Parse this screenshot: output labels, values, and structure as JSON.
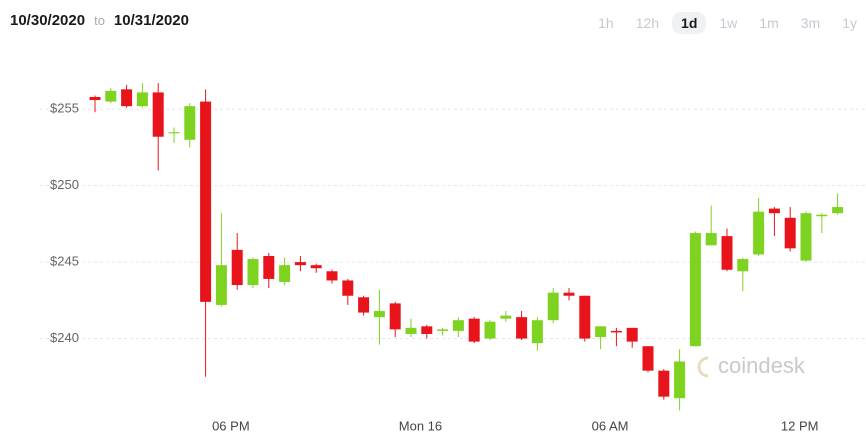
{
  "header": {
    "from": "10/30/2020",
    "to_word": "to",
    "to": "10/31/2020",
    "ranges": [
      "1h",
      "12h",
      "1d",
      "1w",
      "1m",
      "3m",
      "1y"
    ],
    "selected": "1d"
  },
  "chart_data": {
    "type": "candlestick",
    "watermark": "coindesk",
    "up_color": "#7ed321",
    "down_color": "#e8141b",
    "ylim": [
      235.0,
      259.2
    ],
    "yticks": [
      {
        "value": 240,
        "label": "$240"
      },
      {
        "value": 245,
        "label": "$245"
      },
      {
        "value": 250,
        "label": "$250"
      },
      {
        "value": 255,
        "label": "$255"
      }
    ],
    "grid": true,
    "categories": [
      null,
      null,
      null,
      null,
      null,
      null,
      null,
      null,
      null,
      "06 PM",
      null,
      null,
      null,
      null,
      null,
      null,
      null,
      null,
      null,
      null,
      null,
      "Mon 16",
      null,
      null,
      null,
      null,
      null,
      null,
      null,
      null,
      null,
      null,
      null,
      "06 AM",
      null,
      null,
      null,
      null,
      null,
      null,
      null,
      null,
      null,
      null,
      null,
      "12 PM",
      null,
      null
    ],
    "open": [
      255.8,
      255.5,
      256.3,
      255.2,
      256.1,
      253.5,
      253.0,
      255.5,
      242.2,
      245.8,
      243.5,
      245.4,
      243.7,
      245.0,
      244.8,
      244.4,
      243.8,
      242.7,
      241.4,
      242.3,
      240.3,
      240.8,
      240.5,
      240.5,
      241.3,
      240.0,
      241.3,
      241.4,
      239.7,
      241.2,
      243.0,
      242.8,
      240.1,
      240.5,
      240.7,
      239.5,
      237.9,
      236.1,
      239.5,
      246.1,
      246.7,
      244.4,
      245.5,
      248.5,
      247.9,
      245.1,
      248.0,
      248.2
    ],
    "high": [
      255.9,
      256.4,
      256.6,
      256.7,
      256.7,
      253.8,
      255.4,
      256.3,
      248.2,
      246.9,
      245.3,
      245.6,
      245.3,
      245.4,
      244.9,
      244.5,
      243.9,
      242.8,
      243.2,
      242.4,
      241.3,
      240.9,
      240.7,
      241.4,
      241.4,
      241.2,
      241.8,
      241.8,
      241.4,
      243.3,
      243.3,
      242.8,
      240.8,
      240.7,
      240.7,
      239.5,
      238.0,
      239.3,
      247.0,
      248.7,
      247.2,
      245.3,
      249.2,
      248.6,
      248.6,
      248.3,
      248.2,
      249.5
    ],
    "low": [
      254.8,
      255.4,
      255.1,
      255.1,
      251.0,
      252.8,
      252.5,
      237.5,
      242.1,
      243.2,
      243.3,
      243.3,
      243.5,
      244.4,
      244.3,
      243.6,
      242.2,
      241.5,
      239.6,
      240.1,
      240.1,
      240.0,
      240.2,
      240.1,
      239.7,
      239.9,
      241.1,
      239.9,
      239.2,
      241.0,
      242.5,
      239.8,
      239.3,
      239.5,
      239.4,
      237.8,
      236.0,
      235.3,
      239.5,
      246.1,
      244.4,
      243.1,
      245.4,
      246.7,
      245.7,
      245.0,
      246.9,
      248.1
    ],
    "close": [
      255.6,
      256.2,
      255.2,
      256.1,
      253.2,
      253.5,
      255.2,
      242.4,
      244.8,
      243.5,
      245.2,
      243.9,
      244.8,
      244.8,
      244.6,
      243.8,
      242.8,
      241.7,
      241.8,
      240.6,
      240.7,
      240.3,
      240.6,
      241.2,
      239.8,
      241.1,
      241.5,
      240.0,
      241.2,
      243.0,
      242.8,
      240.0,
      240.8,
      240.4,
      239.8,
      237.9,
      236.2,
      238.5,
      246.9,
      246.9,
      244.5,
      245.2,
      248.3,
      248.2,
      245.9,
      248.2,
      248.1,
      248.6
    ]
  }
}
